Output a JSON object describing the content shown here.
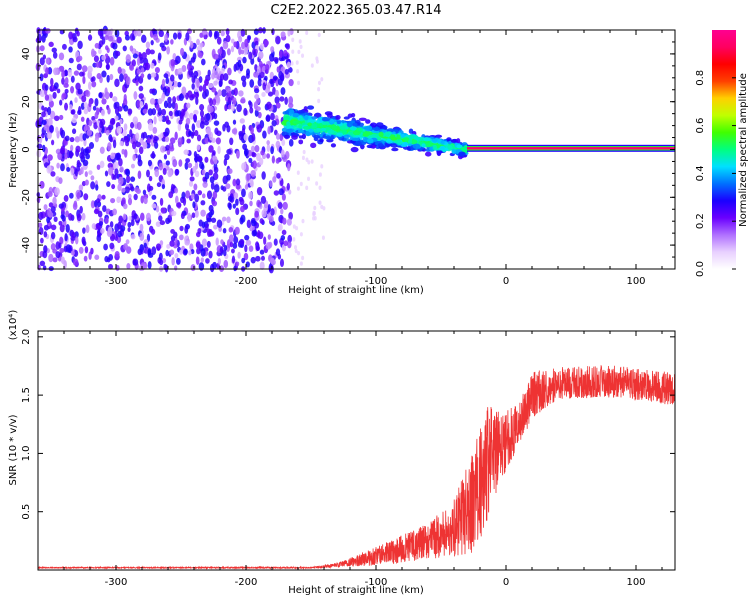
{
  "title": "C2E2.2022.365.03.47.R14",
  "chart_data": [
    {
      "type": "heatmap",
      "name": "spectrogram",
      "xlabel": "Height of straight line (km)",
      "ylabel": "Frequency (Hz)",
      "xlim": [
        -360,
        130
      ],
      "ylim": [
        -50,
        50
      ],
      "xticks": [
        -300,
        -200,
        -100,
        0,
        100
      ],
      "yticks": [
        -40,
        -20,
        0,
        20,
        40
      ],
      "colorbar": {
        "label": "Normalized spectral amplitude",
        "range": [
          0.0,
          1.0
        ],
        "ticks": [
          0.0,
          0.2,
          0.4,
          0.6,
          0.8
        ],
        "tick_labels": [
          "0.0",
          "0.2",
          "0.4",
          "0.6",
          "0.8"
        ],
        "colors": [
          "#ffffff",
          "#e8d0ff",
          "#b070ff",
          "#6a00ff",
          "#1a00ff",
          "#0070ff",
          "#00e0ff",
          "#00ff80",
          "#40ff00",
          "#c0ff00",
          "#ffd000",
          "#ff4000",
          "#ff0000",
          "#ff0060",
          "#ff0090"
        ]
      },
      "regions": [
        {
          "desc": "broadband noise",
          "x": [
            -360,
            -165
          ],
          "y": [
            -50,
            50
          ],
          "amplitude": 0.15
        },
        {
          "desc": "sparse transition",
          "x": [
            -165,
            -140
          ],
          "y": [
            -50,
            50
          ],
          "amplitude": 0.05
        },
        {
          "desc": "signal band",
          "x": [
            -170,
            -30
          ],
          "freq_start": 12,
          "freq_end": 0,
          "amplitude": 0.45
        },
        {
          "desc": "tracked carrier",
          "x": [
            -30,
            130
          ],
          "freq": 0.5,
          "amplitude": 0.95
        }
      ]
    },
    {
      "type": "line",
      "name": "snr",
      "xlabel": "Height of straight line (km)",
      "ylabel": "SNR (10 * v/v)",
      "multiplier": "(x10⁴)",
      "xlim": [
        -360,
        130
      ],
      "ylim": [
        0,
        2.05
      ],
      "xticks": [
        -300,
        -200,
        -100,
        0,
        100
      ],
      "yticks": [
        0.5,
        1.0,
        1.5,
        2.0
      ],
      "ytick_labels": [
        "0.5",
        "1.0",
        "1.5",
        "2.0"
      ],
      "color": "#ee3333",
      "profile": [
        {
          "x": -360,
          "mean": 0.02,
          "noise": 0.004
        },
        {
          "x": -150,
          "mean": 0.02,
          "noise": 0.006
        },
        {
          "x": -130,
          "mean": 0.04,
          "noise": 0.02
        },
        {
          "x": -100,
          "mean": 0.12,
          "noise": 0.08
        },
        {
          "x": -80,
          "mean": 0.18,
          "noise": 0.12
        },
        {
          "x": -60,
          "mean": 0.25,
          "noise": 0.15
        },
        {
          "x": -40,
          "mean": 0.35,
          "noise": 0.25
        },
        {
          "x": -25,
          "mean": 0.6,
          "noise": 0.45
        },
        {
          "x": -15,
          "mean": 0.9,
          "noise": 0.55
        },
        {
          "x": -5,
          "mean": 1.05,
          "noise": 0.3
        },
        {
          "x": 10,
          "mean": 1.25,
          "noise": 0.2
        },
        {
          "x": 20,
          "mean": 1.5,
          "noise": 0.2
        },
        {
          "x": 40,
          "mean": 1.6,
          "noise": 0.14
        },
        {
          "x": 80,
          "mean": 1.62,
          "noise": 0.14
        },
        {
          "x": 130,
          "mean": 1.55,
          "noise": 0.14
        }
      ]
    }
  ]
}
